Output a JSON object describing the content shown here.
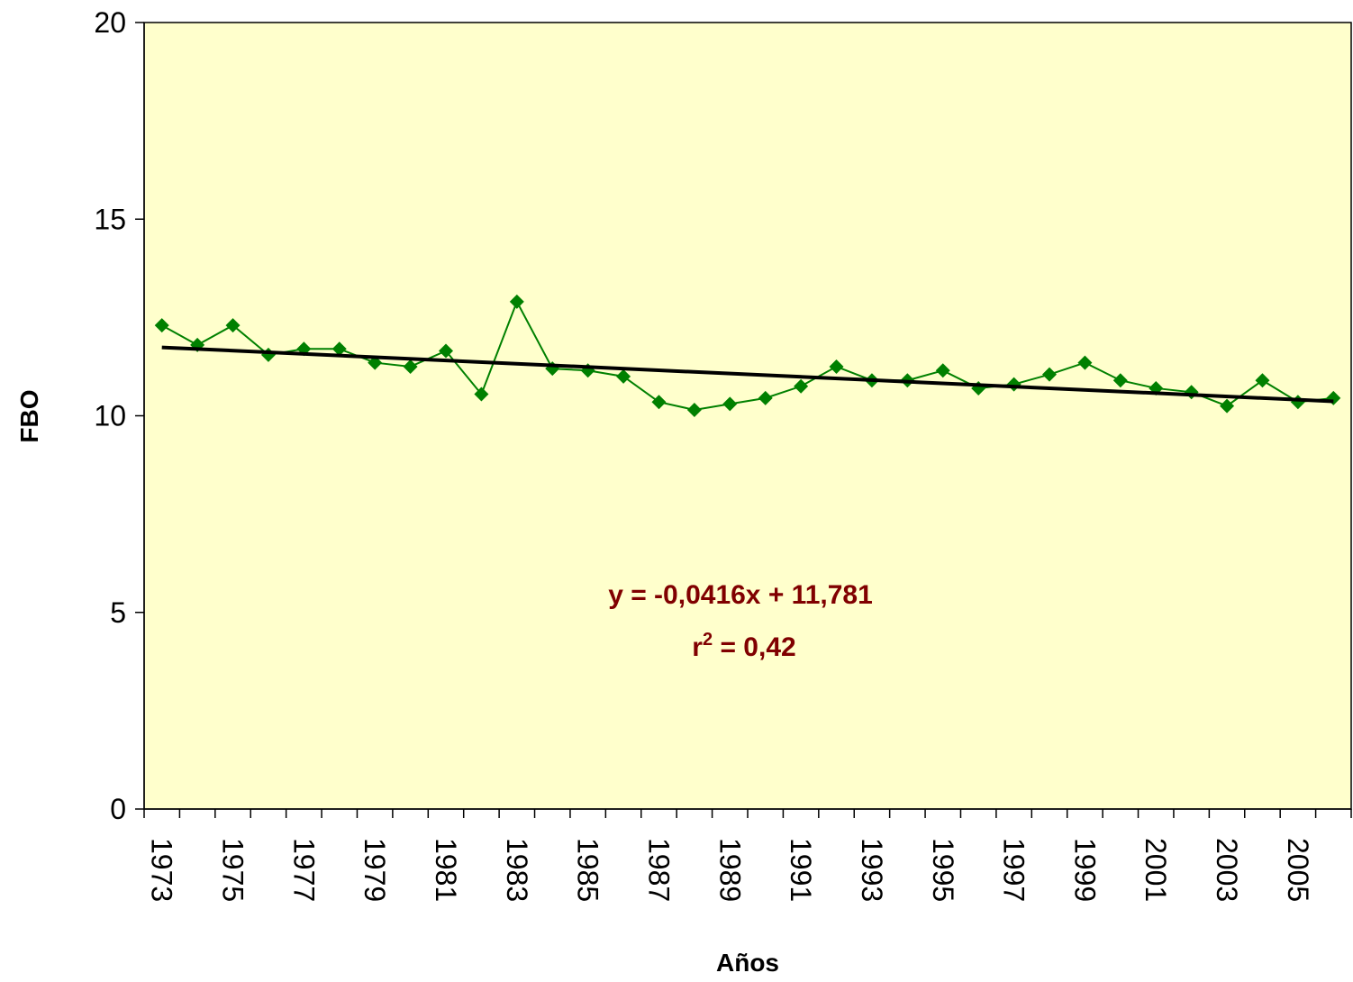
{
  "chart_data": {
    "type": "line",
    "y_label": "FBO",
    "x_label": "Años",
    "categories": [
      "1973",
      null,
      "1975",
      null,
      "1977",
      null,
      "1979",
      null,
      "1981",
      null,
      "1983",
      null,
      "1985",
      null,
      "1987",
      null,
      "1989",
      null,
      "1991",
      null,
      "1993",
      null,
      "1995",
      null,
      "1997",
      null,
      "1999",
      null,
      "2001",
      null,
      "2003",
      null,
      "2005",
      null
    ],
    "series": [
      {
        "color": "#008000",
        "values": [
          12.3,
          11.8,
          12.3,
          11.55,
          11.7,
          11.7,
          11.35,
          11.25,
          11.65,
          10.55,
          12.9,
          11.2,
          11.15,
          11.0,
          10.35,
          10.15,
          10.3,
          10.45,
          10.75,
          11.25,
          10.9,
          10.9,
          11.15,
          10.7,
          10.8,
          11.05,
          11.35,
          10.9,
          10.7,
          10.6,
          10.25,
          10.9,
          10.35,
          10.45
        ]
      }
    ],
    "trendline": {
      "label": "y = -0,0416x + 11,781",
      "slope": -0.0416,
      "intercept": 11.781,
      "color": "#000000"
    },
    "r_squared": {
      "base": "r",
      "superscript": "2",
      "text": " = 0,42"
    },
    "annotation_color": "#800000",
    "background": "#FFFFCC",
    "ylim": [
      0,
      20
    ],
    "yticks": [
      0,
      5,
      10,
      15,
      20
    ]
  }
}
